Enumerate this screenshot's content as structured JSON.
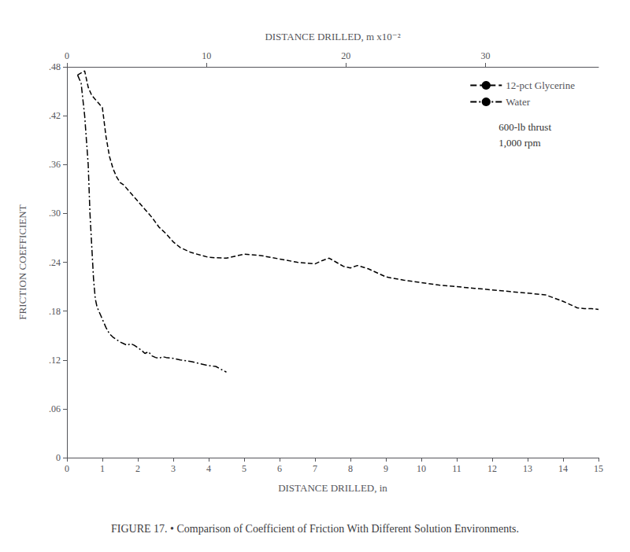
{
  "chart_data": {
    "type": "line",
    "title": "FIGURE 17. • Comparison of Coefficient of Friction With Different Solution Environments.",
    "xlabel": "DISTANCE DRILLED, in",
    "x2label": "DISTANCE DRILLED, m x10⁻²",
    "ylabel": "FRICTION COEFFICIENT",
    "xlim": [
      0,
      15
    ],
    "xticks": [
      0,
      1,
      2,
      3,
      4,
      5,
      6,
      7,
      8,
      9,
      10,
      11,
      12,
      13,
      14,
      15
    ],
    "x2lim": [
      0,
      15
    ],
    "x2ticks": [
      {
        "value": 0,
        "label": "0"
      },
      {
        "value": 3.937,
        "label": "10"
      },
      {
        "value": 7.874,
        "label": "20"
      },
      {
        "value": 11.811,
        "label": "30"
      }
    ],
    "ylim": [
      0,
      0.48
    ],
    "yticks": [
      0,
      {
        "value": 0.06,
        "label": ".06"
      },
      {
        "value": 0.12,
        "label": ".12"
      },
      {
        "value": 0.18,
        "label": ".18"
      },
      {
        "value": 0.24,
        "label": ".24"
      },
      {
        "value": 0.3,
        "label": ".30"
      },
      {
        "value": 0.36,
        "label": ".36"
      },
      {
        "value": 0.42,
        "label": ".42"
      },
      {
        "value": 0.48,
        "label": ".48"
      }
    ],
    "grid": false,
    "legend": "upper right",
    "annotations": [
      "600-lb thrust",
      "1,000 rpm"
    ],
    "series": [
      {
        "name": "12-pct Glycerine",
        "color": "#000000",
        "line_style": "dashed",
        "x": [
          0.3,
          0.5,
          0.6,
          0.7,
          0.8,
          0.9,
          1.0,
          1.1,
          1.2,
          1.3,
          1.4,
          1.5,
          1.6,
          1.8,
          2.0,
          2.2,
          2.4,
          2.6,
          2.8,
          3.0,
          3.2,
          3.5,
          4.0,
          4.5,
          5.0,
          5.5,
          6.0,
          6.5,
          7.0,
          7.2,
          7.4,
          7.6,
          7.8,
          8.0,
          8.2,
          8.5,
          9.0,
          9.5,
          10.0,
          10.5,
          11.0,
          11.5,
          12.0,
          12.5,
          13.0,
          13.5,
          14.0,
          14.2,
          14.4,
          14.6,
          14.8,
          15.0
        ],
        "values": [
          0.47,
          0.475,
          0.455,
          0.445,
          0.44,
          0.435,
          0.43,
          0.395,
          0.37,
          0.355,
          0.345,
          0.338,
          0.335,
          0.325,
          0.315,
          0.305,
          0.295,
          0.283,
          0.275,
          0.265,
          0.258,
          0.252,
          0.246,
          0.245,
          0.25,
          0.248,
          0.244,
          0.24,
          0.238,
          0.242,
          0.245,
          0.24,
          0.235,
          0.233,
          0.236,
          0.232,
          0.222,
          0.218,
          0.215,
          0.212,
          0.21,
          0.208,
          0.206,
          0.204,
          0.202,
          0.2,
          0.192,
          0.188,
          0.184,
          0.183,
          0.183,
          0.182
        ]
      },
      {
        "name": "Water",
        "color": "#000000",
        "line_style": "dashdot",
        "x": [
          0.3,
          0.4,
          0.5,
          0.6,
          0.65,
          0.7,
          0.75,
          0.8,
          0.85,
          0.9,
          0.95,
          1.0,
          1.1,
          1.2,
          1.3,
          1.4,
          1.5,
          1.6,
          1.7,
          1.8,
          1.9,
          2.0,
          2.1,
          2.2,
          2.3,
          2.4,
          2.5,
          2.6,
          2.7,
          2.8,
          3.0,
          3.2,
          3.5,
          3.8,
          4.0,
          4.2,
          4.5
        ],
        "values": [
          0.47,
          0.46,
          0.42,
          0.36,
          0.3,
          0.26,
          0.22,
          0.195,
          0.185,
          0.18,
          0.175,
          0.17,
          0.16,
          0.152,
          0.148,
          0.145,
          0.142,
          0.14,
          0.138,
          0.14,
          0.138,
          0.135,
          0.132,
          0.128,
          0.13,
          0.125,
          0.123,
          0.122,
          0.124,
          0.123,
          0.122,
          0.12,
          0.118,
          0.115,
          0.113,
          0.112,
          0.105
        ]
      }
    ]
  }
}
